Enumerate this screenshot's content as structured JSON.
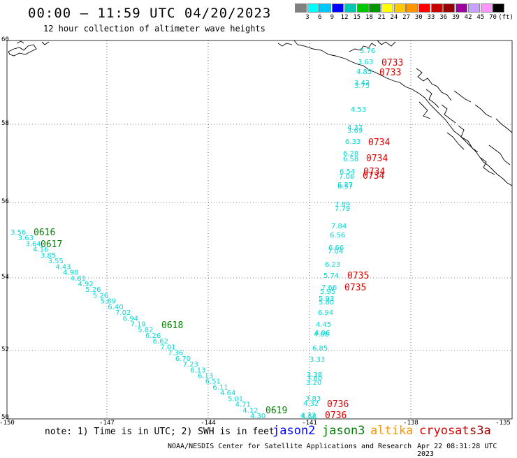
{
  "header": {
    "title": "00:00 – 11:59 UTC 04/20/2023",
    "subtitle": "12 hour collection of altimeter wave heights"
  },
  "scale": {
    "labels": [
      "3",
      "6",
      "9",
      "12",
      "15",
      "18",
      "21",
      "24",
      "27",
      "30",
      "33",
      "36",
      "39",
      "42",
      "45",
      "70",
      "(ft)"
    ],
    "colors": [
      "#808080",
      "#00ffff",
      "#00c8ff",
      "#0000ff",
      "#00c8b4",
      "#00c800",
      "#009600",
      "#ffff00",
      "#ffc800",
      "#ff9600",
      "#ff0000",
      "#c80000",
      "#960000",
      "#a000a0",
      "#c8a0ff",
      "#ff96ff",
      "#000000"
    ]
  },
  "axes": {
    "lat_labels": [
      "60",
      "58",
      "56",
      "54",
      "52",
      "50"
    ],
    "lon_labels": [
      "-150",
      "-147",
      "-144",
      "-141",
      "-138",
      "-135"
    ]
  },
  "tracks": [
    {
      "color": "#00d8d8",
      "values": [
        "3.56",
        "3.63",
        "3.64",
        "4.16",
        "3.85",
        "3.55",
        "4.43",
        "4.98",
        "4.81",
        "4.92",
        "5.26",
        "5.26",
        "5.89",
        "6.40",
        "7.02",
        "6.94",
        "7.19",
        "5.82",
        "6.26",
        "6.62",
        "7.01",
        "7.36",
        "6.70",
        "7.23",
        "6.13",
        "6.13",
        "6.51",
        "6.11",
        "4.64",
        "5.01",
        "4.71",
        "4.12",
        "4.30"
      ]
    },
    {
      "color": "#00d8d8",
      "values": [
        "3.76",
        "3.63",
        "4.85",
        "3.43",
        "3.75",
        "4.53",
        "4.37",
        "3.69",
        "6.33",
        "6.28",
        "6.58",
        "6.54",
        "7.08",
        "6.27",
        "6.57",
        "7.89",
        "7.79",
        "7.84",
        "6.56",
        "6.66",
        "7.04",
        "6.23",
        "5.74",
        "7.66",
        "5.95",
        "5.93",
        "5.80",
        "6.94",
        "4.45",
        "4.06",
        "4.06",
        "6.85",
        "3.33",
        "3.38",
        "3.60",
        "3.20",
        "3.83",
        "4.32",
        "4.22",
        "4.58"
      ]
    }
  ],
  "passes": [
    {
      "time": "0616",
      "color": "#008000"
    },
    {
      "time": "0617",
      "color": "#008000"
    },
    {
      "time": "0618",
      "color": "#008000"
    },
    {
      "time": "0619",
      "color": "#008000"
    },
    {
      "time": "0733",
      "color": "#e00000"
    },
    {
      "time": "0733",
      "color": "#e00000"
    },
    {
      "time": "0734",
      "color": "#e00000"
    },
    {
      "time": "0734",
      "color": "#e00000"
    },
    {
      "time": "0734",
      "color": "#e00000"
    },
    {
      "time": "0734",
      "color": "#e00000"
    },
    {
      "time": "0735",
      "color": "#e00000"
    },
    {
      "time": "0735",
      "color": "#e00000"
    },
    {
      "time": "0736",
      "color": "#e00000"
    },
    {
      "time": "0736",
      "color": "#e00000"
    }
  ],
  "footer": {
    "note": "note: 1) Time is in UTC; 2) SWH is in feet",
    "satellites": [
      {
        "name": "jason2",
        "color": "#0000ff"
      },
      {
        "name": "jason3",
        "color": "#008000"
      },
      {
        "name": "altika",
        "color": "#ff9600"
      },
      {
        "name": "cryosat",
        "color": "#e00000"
      },
      {
        "name": "s3a",
        "color": "#a00000"
      }
    ],
    "credit": "NOAA/NESDIS Center for Satellite Applications and Research",
    "timestamp": "Apr 22 08:31:28 UTC 2023"
  }
}
